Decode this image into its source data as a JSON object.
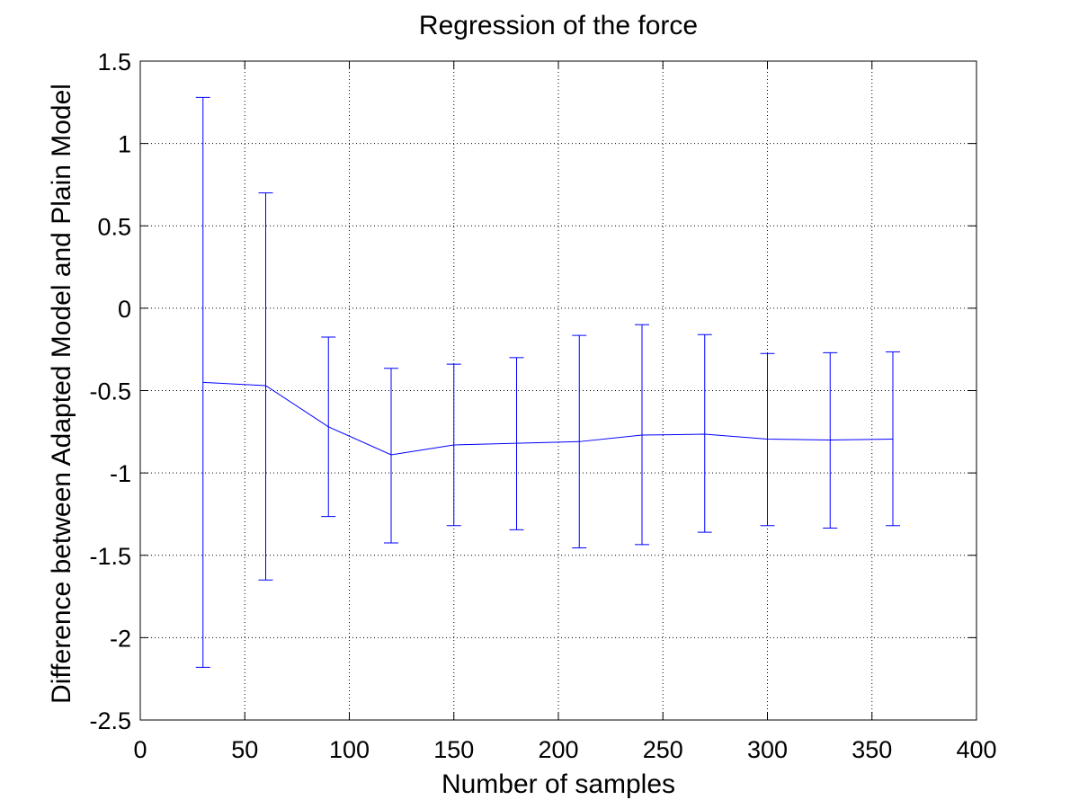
{
  "chart_data": {
    "type": "line",
    "title": "Regression of the force",
    "xlabel": "Number of samples",
    "ylabel": "Difference between Adapted Model and Plain Model",
    "xlim": [
      0,
      400
    ],
    "ylim": [
      -2.5,
      1.5
    ],
    "xticks": [
      0,
      50,
      100,
      150,
      200,
      250,
      300,
      350,
      400
    ],
    "xtick_labels": [
      "0",
      "50",
      "100",
      "150",
      "200",
      "250",
      "300",
      "350",
      "400"
    ],
    "yticks": [
      -2.5,
      -2,
      -1.5,
      -1,
      -0.5,
      0,
      0.5,
      1,
      1.5
    ],
    "ytick_labels": [
      "-2.5",
      "-2",
      "-1.5",
      "-1",
      "-0.5",
      "0",
      "0.5",
      "1",
      "1.5"
    ],
    "grid": true,
    "series": [
      {
        "color": "#0000ff",
        "error_bars": true,
        "x": [
          30,
          60,
          90,
          120,
          150,
          180,
          210,
          240,
          270,
          300,
          330,
          360
        ],
        "y": [
          -0.45,
          -0.47,
          -0.72,
          -0.89,
          -0.83,
          -0.82,
          -0.81,
          -0.77,
          -0.765,
          -0.795,
          -0.8,
          -0.795
        ],
        "lower": [
          -2.18,
          -1.65,
          -1.265,
          -1.425,
          -1.32,
          -1.345,
          -1.455,
          -1.435,
          -1.36,
          -1.32,
          -1.335,
          -1.32
        ],
        "upper": [
          1.28,
          0.7,
          -0.175,
          -0.365,
          -0.34,
          -0.3,
          -0.165,
          -0.1,
          -0.16,
          -0.275,
          -0.27,
          -0.265
        ]
      }
    ]
  }
}
